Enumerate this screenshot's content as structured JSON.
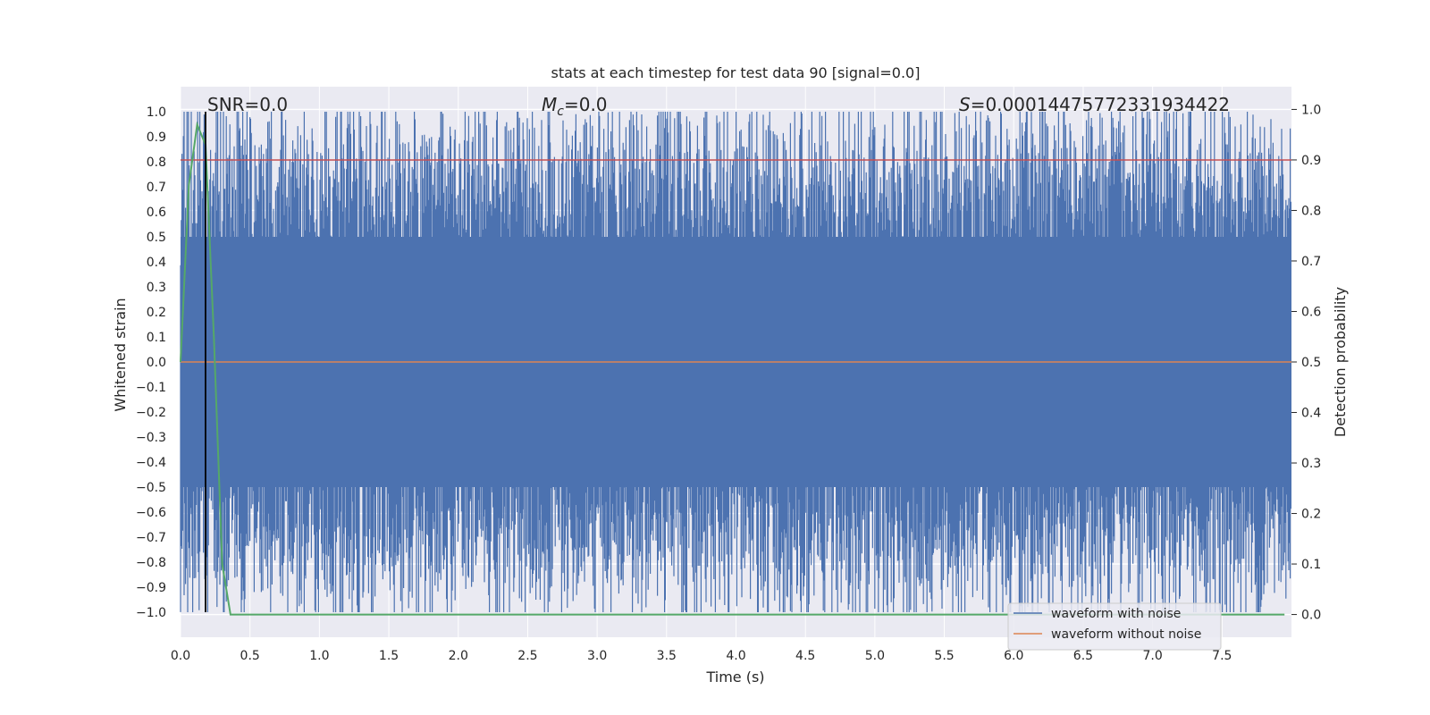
{
  "chart_data": {
    "type": "line",
    "title": "stats at each timestep for test data 90 [signal=0.0]",
    "xlabel": "Time (s)",
    "ylabel": "Whitened strain",
    "y2label": "Detection probability",
    "xlim": [
      0.0,
      8.0
    ],
    "ylim": [
      -1.1,
      1.1
    ],
    "y2lim": [
      -0.045,
      1.045
    ],
    "x_ticks": [
      "0.0",
      "0.5",
      "1.0",
      "1.5",
      "2.0",
      "2.5",
      "3.0",
      "3.5",
      "4.0",
      "4.5",
      "5.0",
      "5.5",
      "6.0",
      "6.5",
      "7.0",
      "7.5"
    ],
    "y_ticks": [
      "1.0",
      "0.9",
      "0.8",
      "0.7",
      "0.6",
      "0.5",
      "0.4",
      "0.3",
      "0.2",
      "0.1",
      "0.0",
      "−0.1",
      "−0.2",
      "−0.3",
      "−0.4",
      "−0.5",
      "−0.6",
      "−0.7",
      "−0.8",
      "−0.9",
      "−1.0"
    ],
    "y2_ticks": [
      "1.0",
      "0.9",
      "0.8",
      "0.7",
      "0.6",
      "0.5",
      "0.4",
      "0.3",
      "0.2",
      "0.1",
      "0.0"
    ],
    "grid": true,
    "legend_placement": "lower-right",
    "annotations": {
      "snr": "SNR=0.0",
      "mc_symbol": "M",
      "mc_sub": "c",
      "mc_value": "=0.0",
      "s_symbol": "S",
      "s_value": "=0.00014475772331934422"
    },
    "vertical_marker_x": 0.18,
    "threshold_y2": 0.9,
    "series": [
      {
        "name": "waveform with noise",
        "color": "#4c72b0",
        "style": "dense noise between -1.0 and 1.0",
        "x_range": [
          0.0,
          8.0
        ],
        "y_range": [
          -1.0,
          1.0
        ]
      },
      {
        "name": "waveform without noise",
        "color": "#dd8452",
        "x": [
          0.0,
          8.0
        ],
        "y": [
          0.0,
          0.0
        ]
      },
      {
        "color": "#55a868",
        "axis": "y2",
        "x": [
          0.0,
          0.06,
          0.12,
          0.18,
          0.24,
          0.3,
          0.36,
          0.5,
          1.0,
          2.0,
          3.0,
          4.0,
          5.0,
          6.0,
          7.0,
          7.95
        ],
        "y": [
          0.5,
          0.85,
          0.97,
          0.93,
          0.55,
          0.1,
          0.0,
          0.0,
          0.0,
          0.0,
          0.0,
          0.0,
          0.0,
          0.0,
          0.0,
          0.0
        ]
      }
    ],
    "threshold_color": "#c44e52"
  }
}
